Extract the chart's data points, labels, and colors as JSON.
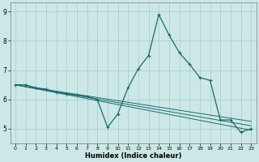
{
  "xlabel": "Humidex (Indice chaleur)",
  "bg_color": "#cce8e6",
  "grid_color": "#aacfcc",
  "line_color": "#1a6b6b",
  "xlim": [
    -0.5,
    23.5
  ],
  "ylim": [
    4.5,
    9.3
  ],
  "yticks": [
    5,
    6,
    7,
    8,
    9
  ],
  "xticks": [
    0,
    1,
    2,
    3,
    4,
    5,
    6,
    7,
    8,
    9,
    10,
    11,
    12,
    13,
    14,
    15,
    16,
    17,
    18,
    19,
    20,
    21,
    22,
    23
  ],
  "lines": [
    {
      "x": [
        0,
        1,
        2,
        3,
        4,
        5,
        6,
        7,
        8,
        9,
        10,
        11,
        12,
        13,
        14,
        15,
        16,
        17,
        18,
        19,
        20,
        21,
        22,
        23
      ],
      "y": [
        6.5,
        6.5,
        6.4,
        6.35,
        6.25,
        6.2,
        6.15,
        6.1,
        6.0,
        5.05,
        5.5,
        6.4,
        7.05,
        7.5,
        8.9,
        8.2,
        7.6,
        7.2,
        6.75,
        6.65,
        5.3,
        5.3,
        4.88,
        5.0
      ],
      "marker": "+",
      "lw": 0.9
    },
    {
      "x": [
        0,
        23
      ],
      "y": [
        6.5,
        5.25
      ],
      "marker": null,
      "lw": 0.7
    },
    {
      "x": [
        0,
        23
      ],
      "y": [
        6.5,
        5.1
      ],
      "marker": null,
      "lw": 0.7
    },
    {
      "x": [
        0,
        23
      ],
      "y": [
        6.5,
        4.95
      ],
      "marker": null,
      "lw": 0.7
    }
  ]
}
